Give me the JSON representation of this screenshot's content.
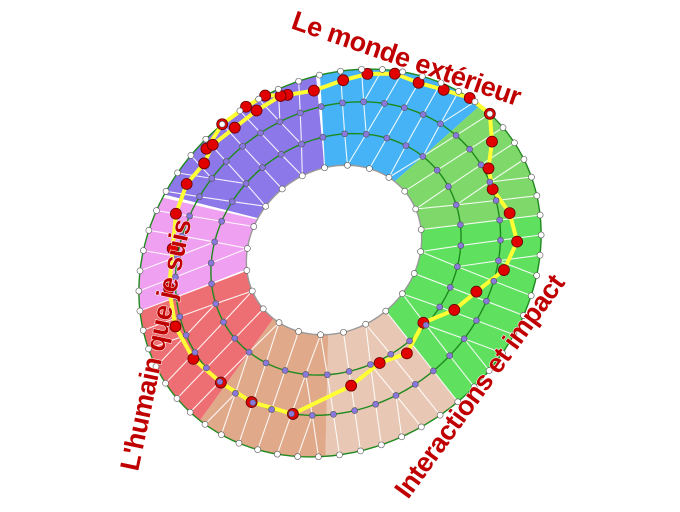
{
  "labels": {
    "top": "Le monde extérieur",
    "left": "L'humain que je suis",
    "bottom_right": "Interactions et impact"
  },
  "colors": {
    "label_text": "#c00000",
    "ring_lines": "#1e8a1e",
    "path": "#ffff33",
    "path_nodes": "#e00000",
    "mid_nodes": "#8877dd",
    "sectors": [
      "#45b3f5",
      "#7fd96a",
      "#5fe05f",
      "#e8c7b4",
      "#e0a98a",
      "#ee6f73",
      "#f0a0f0",
      "#8d78ea"
    ]
  }
}
